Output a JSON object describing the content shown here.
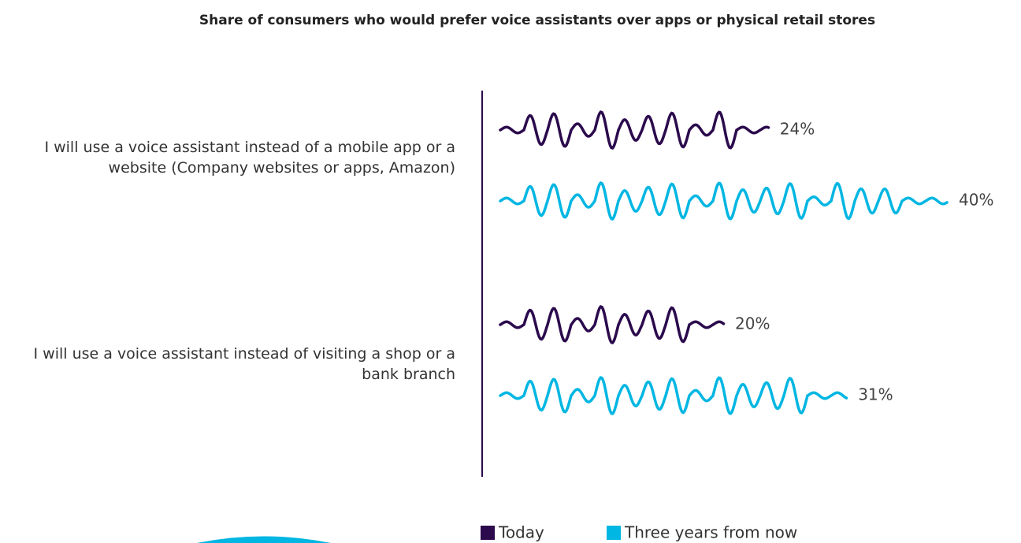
{
  "chart_data": {
    "type": "bar",
    "orientation": "horizontal",
    "title": "Share of consumers who would prefer voice assistants over apps or physical retail stores",
    "categories": [
      "I  will use a voice assistant instead of a mobile app or a website (Company websites or apps, Amazon)",
      "I  will use a voice assistant instead of visiting a shop or a bank branch"
    ],
    "series": [
      {
        "name": "Today",
        "color": "#2b0a4d",
        "values": [
          24,
          20
        ],
        "value_labels": [
          "24%",
          "20%"
        ]
      },
      {
        "name": "Three years from now",
        "color": "#00b6e2",
        "values": [
          40,
          31
        ],
        "value_labels": [
          "40%",
          "31%"
        ]
      }
    ]
  }
}
